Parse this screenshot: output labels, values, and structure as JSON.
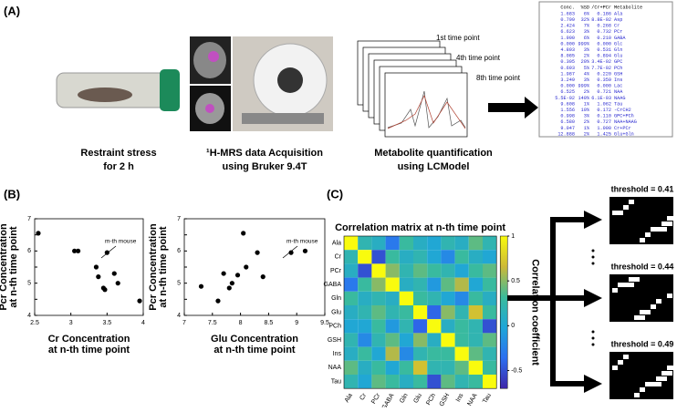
{
  "panel_a": {
    "label": "(A)",
    "steps": [
      [
        "Restraint stress",
        "for 2 h"
      ],
      [
        "¹H-MRS data Acquisition",
        "using Bruker 9.4T"
      ],
      [
        "Metabolite quantification",
        "using LCModel"
      ]
    ],
    "time_points": [
      "1st time point",
      "4th time point",
      "8th time point"
    ],
    "table": {
      "header": [
        "Conc.",
        "%SD",
        "/Cr+PCr",
        "Metabolite"
      ],
      "rows": [
        [
          "1.683",
          "6%",
          "0.186",
          "Ala"
        ],
        [
          "0.799",
          "32%",
          "8.8E-02",
          "Asp"
        ],
        [
          "2.424",
          "7%",
          "0.268",
          "Cr"
        ],
        [
          "6.623",
          "3%",
          "0.732",
          "PCr"
        ],
        [
          "1.900",
          "6%",
          "0.210",
          "GABA"
        ],
        [
          "0.000",
          "999%",
          "0.000",
          "Glc"
        ],
        [
          "4.803",
          "3%",
          "0.531",
          "Gln"
        ],
        [
          "8.085",
          "2%",
          "0.894",
          "Glu"
        ],
        [
          "0.305",
          "20%",
          "3.4E-02",
          "GPC"
        ],
        [
          "0.693",
          "5%",
          "7.7E-02",
          "PCh"
        ],
        [
          "1.987",
          "4%",
          "0.220",
          "GSH"
        ],
        [
          "3.249",
          "3%",
          "0.359",
          "Ins"
        ],
        [
          "0.000",
          "999%",
          "0.000",
          "Lac"
        ],
        [
          "6.525",
          "2%",
          "0.721",
          "NAA"
        ],
        [
          "5.5E-02",
          "140%",
          "6.1E-03",
          "NAAG"
        ],
        [
          "9.608",
          "1%",
          "1.062",
          "Tau"
        ],
        [
          "1.556",
          "10%",
          "0.172",
          "-CrCH2"
        ],
        [
          "0.998",
          "3%",
          "0.110",
          "GPC+PCh"
        ],
        [
          "6.580",
          "2%",
          "0.727",
          "NAA+NAAG"
        ],
        [
          "9.047",
          "1%",
          "1.000",
          "Cr+PCr"
        ],
        [
          "12.888",
          "2%",
          "1.425",
          "Glu+Gln"
        ]
      ]
    }
  },
  "panel_b": {
    "label": "(B)"
  },
  "panel_c": {
    "label": "(C)"
  },
  "chart_data": [
    {
      "type": "scatter",
      "x": [
        2.55,
        3.05,
        3.1,
        3.35,
        3.38,
        3.45,
        3.47,
        3.5,
        3.6,
        3.65,
        3.95
      ],
      "values": [
        6.55,
        6.0,
        6.0,
        5.5,
        5.2,
        4.85,
        4.8,
        5.95,
        5.3,
        5.0,
        4.45
      ],
      "xlim": [
        2.5,
        4
      ],
      "ylim": [
        4,
        7
      ],
      "xticks": [
        2.5,
        3,
        3.5,
        4
      ],
      "yticks": [
        4,
        4.5,
        5,
        5.5,
        6,
        6.5,
        7
      ],
      "xlabel": [
        "Cr Concentration",
        "at n-th time point"
      ],
      "ylabel": [
        "Pcr Concentration",
        "at n-th time point"
      ],
      "annotation": "m-th mouse",
      "color": "#000000"
    },
    {
      "type": "scatter",
      "x": [
        7.3,
        7.6,
        7.7,
        7.8,
        7.85,
        7.95,
        8.05,
        8.1,
        8.3,
        8.4,
        8.9,
        9.15
      ],
      "values": [
        4.9,
        4.45,
        5.3,
        4.85,
        5.0,
        5.25,
        6.55,
        5.5,
        5.95,
        5.2,
        5.95,
        6.0
      ],
      "xlim": [
        7,
        9.5
      ],
      "ylim": [
        4,
        7
      ],
      "xticks": [
        7,
        7.5,
        8,
        8.5,
        9,
        9.5
      ],
      "yticks": [
        4,
        4.5,
        5,
        5.5,
        6,
        6.5,
        7
      ],
      "xlabel": [
        "Glu Concentration",
        "at n-th time point"
      ],
      "ylabel": [
        "Pcr Concentration",
        "at n-th time point"
      ],
      "annotation": "m-th mouse",
      "color": "#000000"
    },
    {
      "type": "heatmap",
      "title": "Correlation matrix at n-th time point",
      "colorbar_label": "Correlation coefficient",
      "categories": [
        "Ala",
        "Cr",
        "PCr",
        "GABA",
        "Gln",
        "Glu",
        "PCh",
        "GSH",
        "Ins",
        "NAA",
        "Tau"
      ],
      "values": [
        [
          1,
          0.2,
          0.1,
          -0.3,
          0.3,
          0.1,
          0.0,
          0.2,
          0.1,
          0.4,
          0.2
        ],
        [
          0.2,
          1,
          -0.5,
          0.3,
          0.1,
          0.2,
          0.0,
          -0.2,
          0.3,
          0.1,
          0.0
        ],
        [
          0.1,
          -0.5,
          1,
          0.5,
          0.2,
          0.4,
          0.3,
          0.2,
          0.0,
          0.3,
          0.4
        ],
        [
          -0.3,
          0.3,
          0.5,
          1,
          0.1,
          0.2,
          -0.1,
          0.4,
          0.6,
          0.0,
          0.3
        ],
        [
          0.3,
          0.1,
          0.2,
          0.1,
          1,
          0.3,
          0.2,
          0.0,
          -0.2,
          0.3,
          0.1
        ],
        [
          0.1,
          0.2,
          0.4,
          0.2,
          0.3,
          1,
          -0.4,
          0.5,
          0.2,
          0.7,
          0.3
        ],
        [
          0.0,
          0.0,
          0.3,
          -0.1,
          0.2,
          -0.4,
          1,
          0.1,
          0.3,
          0.2,
          -0.5
        ],
        [
          0.2,
          -0.2,
          0.2,
          0.4,
          0.0,
          0.5,
          0.1,
          1,
          0.3,
          0.2,
          0.4
        ],
        [
          0.1,
          0.3,
          0.0,
          0.6,
          -0.2,
          0.2,
          0.3,
          0.3,
          1,
          0.4,
          0.2
        ],
        [
          0.4,
          0.1,
          0.3,
          0.0,
          0.3,
          0.7,
          0.2,
          0.2,
          0.4,
          1,
          0.3
        ],
        [
          0.2,
          0.0,
          0.4,
          0.3,
          0.1,
          0.3,
          -0.5,
          0.4,
          0.2,
          0.3,
          1
        ]
      ],
      "clim": [
        -0.7,
        1
      ],
      "cticks": [
        -0.5,
        0,
        0.5,
        1
      ]
    }
  ],
  "thresholds": [
    "threshold = 0.41",
    "threshold = 0.44",
    "threshold = 0.49"
  ]
}
